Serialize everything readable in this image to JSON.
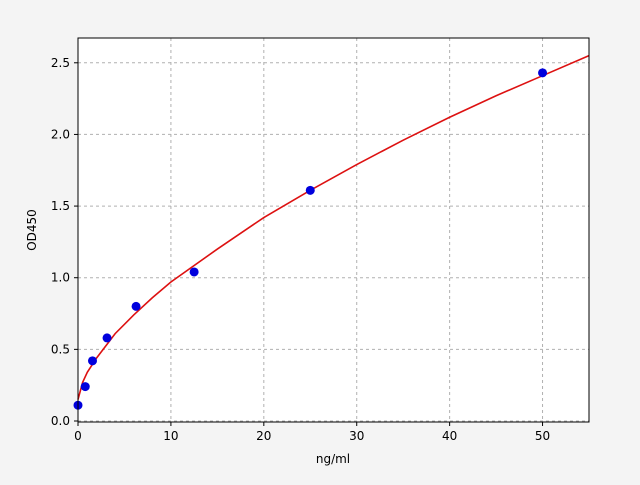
{
  "chart_data": {
    "type": "scatter",
    "title": "",
    "xlabel": "ng/ml",
    "ylabel": "OD450",
    "xlim": [
      0,
      55
    ],
    "ylim": [
      0,
      2.68
    ],
    "xticks": [
      0,
      10,
      20,
      30,
      40,
      50
    ],
    "yticks": [
      0.0,
      0.5,
      1.0,
      1.5,
      2.0,
      2.5
    ],
    "xtick_labels": [
      "0",
      "10",
      "20",
      "30",
      "40",
      "50"
    ],
    "ytick_labels": [
      "0.0",
      "0.5",
      "1.0",
      "1.5",
      "2.0",
      "2.5"
    ],
    "grid": true,
    "series": [
      {
        "type": "scatter",
        "color": "#0000dd",
        "x": [
          0,
          0.78,
          1.56,
          3.125,
          6.25,
          12.5,
          25,
          50
        ],
        "y": [
          0.11,
          0.24,
          0.42,
          0.58,
          0.8,
          1.04,
          1.61,
          2.43
        ]
      },
      {
        "type": "line",
        "color": "#dd1111",
        "x": [
          0,
          0.5,
          1,
          2,
          4,
          6,
          8,
          10,
          15,
          20,
          25,
          30,
          35,
          40,
          45,
          50,
          55
        ],
        "y": [
          0.15,
          0.27,
          0.34,
          0.44,
          0.61,
          0.74,
          0.86,
          0.97,
          1.2,
          1.42,
          1.61,
          1.79,
          1.96,
          2.12,
          2.27,
          2.41,
          2.55
        ]
      }
    ]
  }
}
